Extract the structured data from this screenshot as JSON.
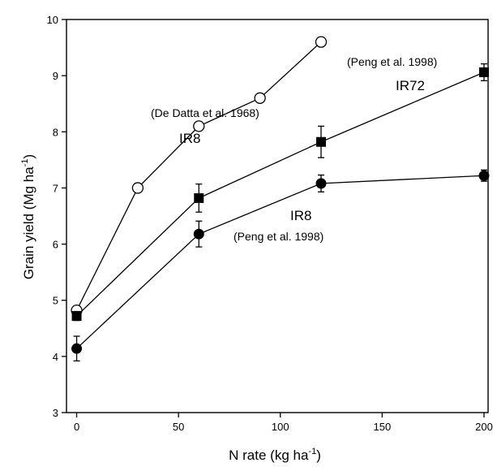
{
  "chart_data": {
    "type": "line",
    "xlabel_main": "N rate (kg ha",
    "xlabel_sup": "-1",
    "xlabel_end": ")",
    "ylabel_main": "Grain yield (Mg ha",
    "ylabel_sup": "-1",
    "ylabel_end": ")",
    "xlim": [
      -5,
      202
    ],
    "ylim": [
      3,
      10
    ],
    "x_ticks": [
      0,
      50,
      100,
      150,
      200
    ],
    "y_ticks": [
      3,
      4,
      5,
      6,
      7,
      8,
      9,
      10
    ],
    "series": [
      {
        "marker": "open-circle",
        "x": [
          0,
          30,
          60,
          90,
          120
        ],
        "y": [
          4.82,
          7.0,
          8.1,
          8.6,
          9.6
        ],
        "err": [
          0,
          0,
          0,
          0,
          0
        ]
      },
      {
        "marker": "filled-square",
        "x": [
          0,
          60,
          120,
          200
        ],
        "y": [
          4.72,
          6.82,
          7.82,
          9.06
        ],
        "err": [
          0.08,
          0.25,
          0.28,
          0.15
        ]
      },
      {
        "marker": "filled-circle",
        "x": [
          0,
          60,
          120,
          200
        ],
        "y": [
          4.14,
          6.18,
          7.08,
          7.22
        ],
        "err": [
          0.22,
          0.23,
          0.15,
          0.1
        ]
      }
    ],
    "annotations": [
      {
        "text": "(De Datta et al. 1968)",
        "style": "small"
      },
      {
        "text": "IR8",
        "style": "big"
      },
      {
        "text": "(Peng et al. 1998)",
        "style": "small"
      },
      {
        "text": "IR72",
        "style": "big"
      },
      {
        "text": "IR8",
        "style": "big"
      },
      {
        "text": "(Peng et al. 1998)",
        "style": "small"
      }
    ]
  }
}
